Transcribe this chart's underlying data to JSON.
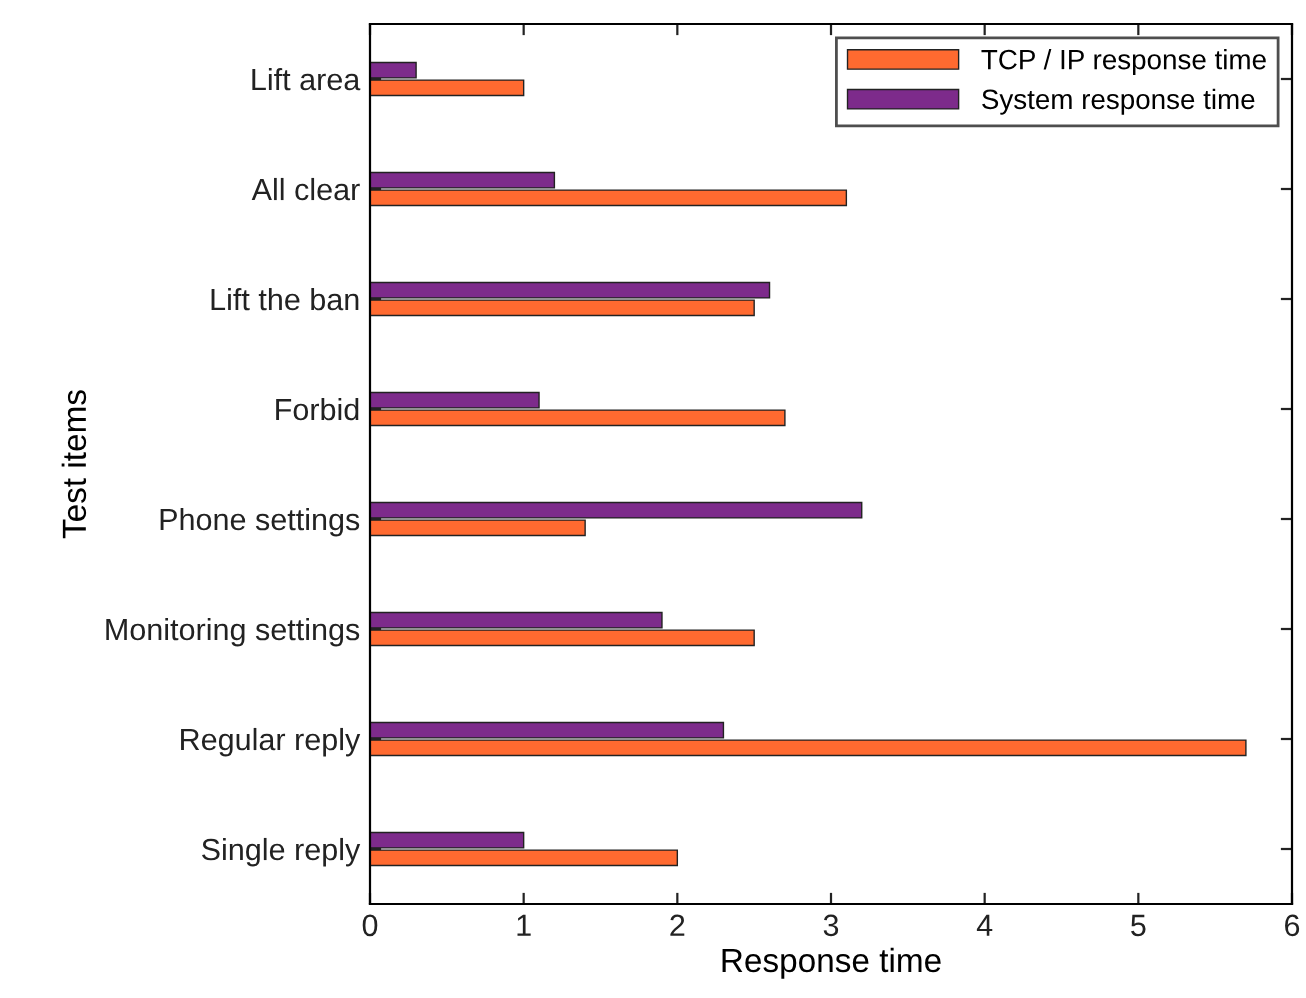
{
  "chart_data": {
    "type": "bar",
    "orientation": "horizontal",
    "xlabel": "Response time",
    "ylabel": "Test items",
    "categories": [
      "Lift area",
      "All clear",
      "Lift the ban",
      "Forbid",
      "Phone settings",
      "Monitoring settings",
      "Regular reply",
      "Single reply"
    ],
    "series": [
      {
        "name": "TCP / IP response time",
        "color": "#ff6a30",
        "values": [
          1.0,
          3.1,
          2.5,
          2.7,
          1.4,
          2.5,
          5.7,
          2.0
        ]
      },
      {
        "name": "System response time",
        "color": "#7d2b8b",
        "values": [
          0.3,
          1.2,
          2.6,
          1.1,
          3.2,
          1.9,
          2.3,
          1.0
        ]
      }
    ],
    "xlim": [
      0,
      6
    ],
    "xticks": [
      0,
      1,
      2,
      3,
      4,
      5,
      6
    ],
    "grid": false,
    "legend": "top right"
  }
}
